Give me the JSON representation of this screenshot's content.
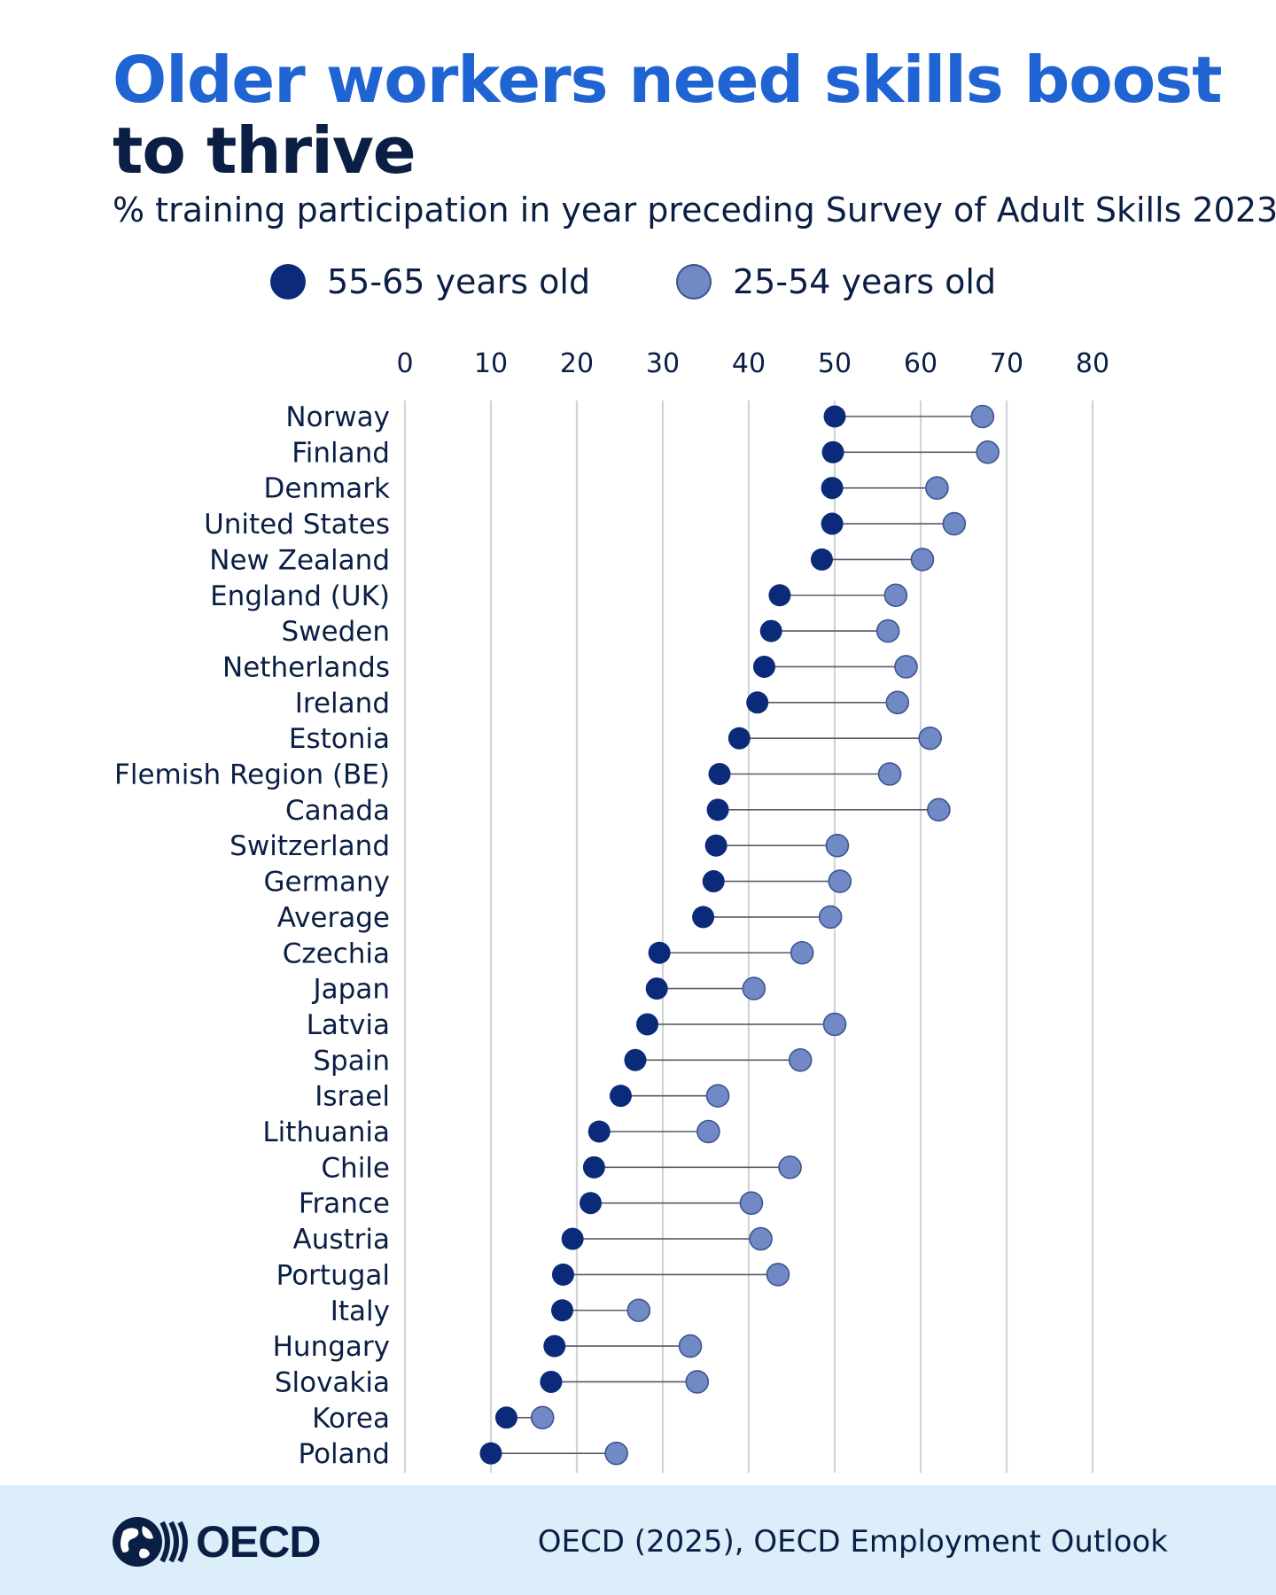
{
  "title_line1": "Older workers need skills boost",
  "title_line2": "to thrive",
  "subtitle": "% training participation in year preceding Survey of Adult Skills 2023",
  "legend": [
    {
      "label": "55-65 years old",
      "color": "#0b2a7a"
    },
    {
      "label": "25-54 years old",
      "color": "#7189c4"
    }
  ],
  "footer": {
    "logo_text": "OECD",
    "source": "OECD (2025), OECD Employment Outlook"
  },
  "colors": {
    "title_accent": "#1f64d2",
    "text_dark": "#0b1f44",
    "footer_bg": "#ddeefb",
    "grid": "#d2d4d8",
    "connector": "#555a66"
  },
  "chart_data": {
    "type": "dumbbell",
    "title": "Older workers need skills boost to thrive",
    "subtitle": "% training participation in year preceding Survey of Adult Skills 2023",
    "x_ticks": [
      0,
      10,
      20,
      30,
      40,
      50,
      60,
      70,
      80
    ],
    "xlim": [
      0,
      80
    ],
    "grid": true,
    "legend_position": "top-center",
    "categories": [
      "Norway",
      "Finland",
      "Denmark",
      "United States",
      "New Zealand",
      "England (UK)",
      "Sweden",
      "Netherlands",
      "Ireland",
      "Estonia",
      "Flemish Region (BE)",
      "Canada",
      "Switzerland",
      "Germany",
      "Average",
      "Czechia",
      "Japan",
      "Latvia",
      "Spain",
      "Israel",
      "Lithuania",
      "Chile",
      "France",
      "Austria",
      "Portugal",
      "Italy",
      "Hungary",
      "Slovakia",
      "Korea",
      "Poland"
    ],
    "series": [
      {
        "name": "55-65 years old",
        "values": [
          50.0,
          49.8,
          49.7,
          49.7,
          48.5,
          43.6,
          42.6,
          41.8,
          41.0,
          38.9,
          36.6,
          36.4,
          36.2,
          35.9,
          34.7,
          29.6,
          29.3,
          28.2,
          26.8,
          25.1,
          22.6,
          22.0,
          21.6,
          19.5,
          18.4,
          18.3,
          17.4,
          17.0,
          11.8,
          10.0
        ]
      },
      {
        "name": "25-54 years old",
        "values": [
          67.2,
          67.8,
          61.9,
          63.9,
          60.2,
          57.1,
          56.2,
          58.3,
          57.3,
          61.1,
          56.4,
          62.1,
          50.3,
          50.6,
          49.5,
          46.2,
          40.6,
          50.0,
          46.0,
          36.4,
          35.3,
          44.8,
          40.3,
          41.4,
          43.4,
          27.2,
          33.2,
          34.0,
          16.0,
          24.6
        ]
      }
    ]
  }
}
